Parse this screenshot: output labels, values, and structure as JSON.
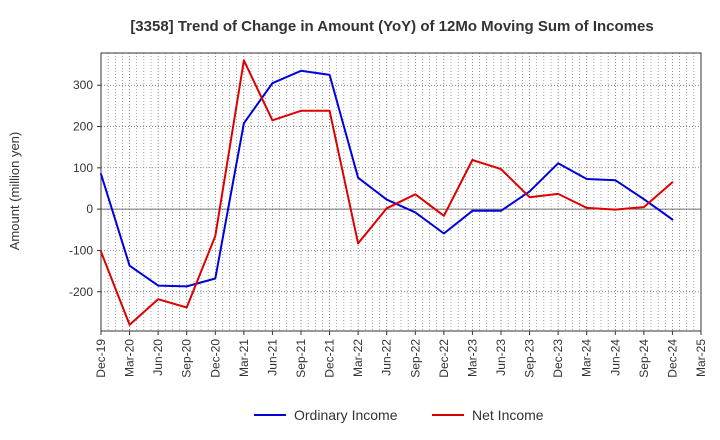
{
  "chart_data": {
    "type": "line",
    "title": "[3358]  Trend of Change in Amount (YoY) of 12Mo Moving Sum of Incomes",
    "ylabel": "Amount (million yen)",
    "xlabel": "",
    "categories": [
      "Dec-19",
      "Mar-20",
      "Jun-20",
      "Sep-20",
      "Dec-20",
      "Mar-21",
      "Jun-21",
      "Sep-21",
      "Dec-21",
      "Mar-22",
      "Jun-22",
      "Sep-22",
      "Dec-22",
      "Mar-23",
      "Jun-23",
      "Sep-23",
      "Dec-23",
      "Mar-24",
      "Jun-24",
      "Sep-24",
      "Dec-24",
      "Mar-25"
    ],
    "ylim": [
      -295,
      378
    ],
    "yticks": [
      -200,
      -100,
      0,
      100,
      200,
      300
    ],
    "ytick_labels": [
      "-200",
      "-100",
      "0",
      "100",
      "200",
      "300"
    ],
    "grid": true,
    "legend_position": "bottom",
    "series": [
      {
        "name": "Ordinary Income",
        "color": "#0000dd",
        "values": [
          85,
          -137,
          -185,
          -187,
          -168,
          208,
          305,
          335,
          325,
          76,
          23,
          -8,
          -59,
          -4,
          -4,
          43,
          111,
          73,
          70,
          24,
          -25,
          null
        ]
      },
      {
        "name": "Net Income",
        "color": "#dd0000",
        "values": [
          -103,
          -280,
          -218,
          -238,
          -65,
          360,
          215,
          238,
          238,
          -83,
          2,
          36,
          -16,
          119,
          97,
          29,
          37,
          3,
          -1,
          5,
          65,
          null
        ]
      }
    ]
  }
}
